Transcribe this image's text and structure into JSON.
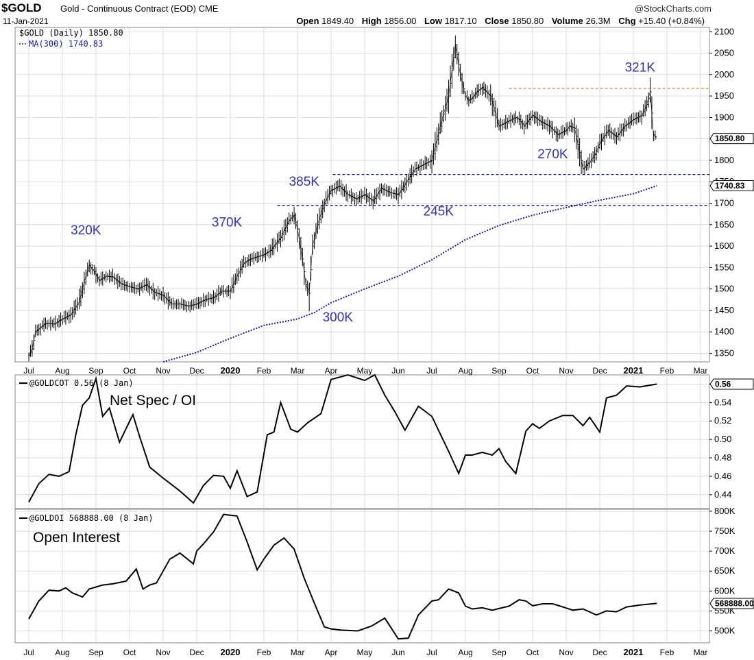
{
  "header": {
    "symbol": "$GOLD",
    "description": "Gold - Continuous Contract (EOD) CME",
    "date": "11-Jan-2021",
    "brand": "@StockCharts.com",
    "open_label": "Open",
    "open": "1849.40",
    "high_label": "High",
    "high": "1856.00",
    "low_label": "Low",
    "low": "1817.10",
    "close_label": "Close",
    "close": "1850.80",
    "volume_label": "Volume",
    "volume": "26.3M",
    "chg_label": "Chg",
    "chg": "+15.40 (+0.84%)"
  },
  "months": [
    "Jul",
    "Aug",
    "Sep",
    "Oct",
    "Nov",
    "Dec",
    "2020",
    "Feb",
    "Mar",
    "Apr",
    "May",
    "Jun",
    "Jul",
    "Aug",
    "Sep",
    "Oct",
    "Nov",
    "Dec",
    "2021",
    "Feb",
    "Mar"
  ],
  "bold_months": [
    "2020",
    "2021"
  ],
  "colors": {
    "price": "#000000",
    "ma": "#1a1aa0",
    "annotation": "#3333aa",
    "resistance": "#e07030",
    "support": "#1a1aa0",
    "grid": "#c8c8c8"
  },
  "chart_data": [
    {
      "type": "line",
      "title": "$GOLD (Daily) 1850.80",
      "legend_label": "$GOLD (Daily) 1850.80",
      "ma_legend_label": "MA(300) 1740.83",
      "last_price_tag": "1850.80",
      "ma_tag": "1740.83",
      "ylim": [
        1330,
        2110
      ],
      "yticks": [
        1350,
        1400,
        1450,
        1500,
        1550,
        1600,
        1650,
        1700,
        1750,
        1800,
        1850,
        1900,
        1950,
        2000,
        2050,
        2100
      ],
      "x_index_range": [
        0,
        20
      ],
      "price_series": {
        "name": "$GOLD (Daily)",
        "x": [
          0,
          0.1,
          0.2,
          0.35,
          0.5,
          0.75,
          1.0,
          1.25,
          1.5,
          1.7,
          1.8,
          1.95,
          2.1,
          2.3,
          2.5,
          2.75,
          3.0,
          3.25,
          3.5,
          3.75,
          4.0,
          4.25,
          4.5,
          4.75,
          5.0,
          5.25,
          5.5,
          5.75,
          6.0,
          6.2,
          6.4,
          6.6,
          6.8,
          7.0,
          7.2,
          7.5,
          7.75,
          7.9,
          8.0,
          8.15,
          8.25,
          8.35,
          8.45,
          8.6,
          8.8,
          9.0,
          9.25,
          9.5,
          9.75,
          10.0,
          10.25,
          10.5,
          10.75,
          11.0,
          11.25,
          11.5,
          11.75,
          12.0,
          12.25,
          12.5,
          12.7,
          12.85,
          13.0,
          13.1,
          13.2,
          13.35,
          13.5,
          13.75,
          14.0,
          14.25,
          14.5,
          14.6,
          14.75,
          15.0,
          15.25,
          15.5,
          15.75,
          16.0,
          16.1,
          16.25,
          16.5,
          16.75,
          16.9,
          17.0,
          17.25,
          17.5,
          17.75,
          18.0,
          18.25,
          18.4,
          18.5,
          18.6,
          18.7
        ],
        "values": [
          1345,
          1360,
          1400,
          1410,
          1420,
          1418,
          1430,
          1440,
          1470,
          1530,
          1555,
          1540,
          1520,
          1530,
          1528,
          1512,
          1505,
          1500,
          1510,
          1492,
          1485,
          1465,
          1465,
          1460,
          1465,
          1475,
          1480,
          1495,
          1495,
          1530,
          1560,
          1570,
          1575,
          1580,
          1590,
          1620,
          1660,
          1672,
          1640,
          1570,
          1510,
          1490,
          1600,
          1650,
          1700,
          1730,
          1740,
          1720,
          1710,
          1720,
          1705,
          1735,
          1725,
          1720,
          1750,
          1780,
          1790,
          1800,
          1880,
          1950,
          2070,
          2000,
          1950,
          1940,
          1945,
          1960,
          1970,
          1950,
          1880,
          1890,
          1900,
          1895,
          1880,
          1905,
          1890,
          1880,
          1860,
          1870,
          1880,
          1875,
          1780,
          1800,
          1820,
          1840,
          1870,
          1855,
          1880,
          1895,
          1905,
          1930,
          1960,
          1860,
          1850.8
        ]
      },
      "ma_series": {
        "name": "MA(300)",
        "x": [
          4.0,
          5.0,
          6.0,
          7.0,
          8.0,
          8.5,
          9.0,
          10.0,
          11.0,
          12.0,
          13.0,
          14.0,
          15.0,
          16.0,
          17.0,
          18.0,
          18.7
        ],
        "values": [
          1330,
          1352,
          1385,
          1415,
          1430,
          1445,
          1468,
          1500,
          1530,
          1568,
          1615,
          1648,
          1672,
          1690,
          1707,
          1722,
          1740.83
        ]
      },
      "reference_lines": [
        {
          "name": "resistance",
          "value": 1968,
          "x_start": 14.3,
          "x_end": 20.7,
          "color": "#e07030"
        },
        {
          "name": "support-upper",
          "value": 1767,
          "x_start": 9.05,
          "x_end": 20.7,
          "color": "#1a1aa0"
        },
        {
          "name": "support-lower",
          "value": 1695,
          "x_start": 7.4,
          "x_end": 20.7,
          "color": "#1a1aa0"
        }
      ],
      "annotations": [
        {
          "text": "320K",
          "x": 1.7,
          "y": 1627
        },
        {
          "text": "370K",
          "x": 5.9,
          "y": 1646
        },
        {
          "text": "385K",
          "x": 8.2,
          "y": 1741
        },
        {
          "text": "300K",
          "x": 9.2,
          "y": 1424
        },
        {
          "text": "245K",
          "x": 12.2,
          "y": 1671
        },
        {
          "text": "270K",
          "x": 15.6,
          "y": 1805
        },
        {
          "text": "321K",
          "x": 18.2,
          "y": 2007
        }
      ]
    },
    {
      "type": "line",
      "title": "Net Spec / OI",
      "legend_label": "@GOLDCOT 0.56 (8 Jan)",
      "last_value_tag": "0.56",
      "ylim": [
        0.425,
        0.57
      ],
      "yticks": [
        0.44,
        0.46,
        0.48,
        0.5,
        0.52,
        0.54,
        0.56
      ],
      "ytick_labels": [
        "0.44",
        "0.46",
        "0.48",
        "0.50",
        "0.52",
        "0.54",
        "0.56"
      ],
      "x": [
        0,
        0.3,
        0.6,
        0.9,
        1.2,
        1.4,
        1.6,
        1.8,
        2.0,
        2.2,
        2.4,
        2.7,
        3.1,
        3.3,
        3.6,
        4.0,
        4.5,
        4.9,
        5.2,
        5.5,
        5.8,
        6.0,
        6.2,
        6.5,
        6.8,
        7.1,
        7.3,
        7.5,
        7.8,
        8.0,
        8.3,
        8.7,
        9.0,
        9.5,
        10.0,
        10.3,
        10.6,
        10.9,
        11.2,
        11.6,
        12.0,
        12.5,
        12.8,
        13.0,
        13.2,
        13.5,
        13.8,
        14.0,
        14.2,
        14.5,
        14.8,
        15.0,
        15.2,
        15.5,
        15.9,
        16.2,
        16.5,
        16.7,
        17.0,
        17.2,
        17.5,
        17.8,
        18.2,
        18.7
      ],
      "values": [
        0.432,
        0.452,
        0.462,
        0.46,
        0.465,
        0.505,
        0.537,
        0.545,
        0.566,
        0.525,
        0.534,
        0.497,
        0.527,
        0.503,
        0.47,
        0.458,
        0.444,
        0.431,
        0.45,
        0.461,
        0.46,
        0.447,
        0.466,
        0.438,
        0.443,
        0.505,
        0.508,
        0.54,
        0.511,
        0.508,
        0.518,
        0.528,
        0.565,
        0.57,
        0.564,
        0.57,
        0.548,
        0.53,
        0.51,
        0.536,
        0.525,
        0.487,
        0.463,
        0.483,
        0.483,
        0.486,
        0.483,
        0.49,
        0.476,
        0.463,
        0.509,
        0.517,
        0.512,
        0.52,
        0.526,
        0.526,
        0.515,
        0.524,
        0.508,
        0.545,
        0.548,
        0.558,
        0.557,
        0.56
      ]
    },
    {
      "type": "line",
      "title": "Open Interest",
      "legend_label": "@GOLDOI 568888.00 (8 Jan)",
      "last_value_tag": "568888.00",
      "ylim": [
        470000,
        805000
      ],
      "yticks": [
        500000,
        550000,
        600000,
        650000,
        700000,
        750000,
        800000
      ],
      "ytick_labels": [
        "500K",
        "550K",
        "600K",
        "650K",
        "700K",
        "750K",
        "800K"
      ],
      "x": [
        0,
        0.3,
        0.6,
        0.9,
        1.1,
        1.3,
        1.6,
        1.8,
        2.0,
        2.2,
        2.5,
        2.9,
        3.2,
        3.4,
        3.6,
        3.8,
        4.2,
        4.5,
        4.9,
        5.0,
        5.2,
        5.5,
        5.8,
        6.2,
        6.5,
        6.8,
        7.0,
        7.3,
        7.6,
        7.9,
        8.2,
        8.5,
        8.8,
        9.0,
        9.3,
        9.8,
        10.2,
        10.6,
        11.0,
        11.3,
        11.6,
        12.0,
        12.2,
        12.5,
        12.8,
        13.0,
        13.2,
        13.5,
        13.8,
        14.0,
        14.3,
        14.6,
        14.8,
        15.0,
        15.3,
        15.6,
        15.9,
        16.2,
        16.5,
        16.9,
        17.2,
        17.5,
        17.8,
        18.2,
        18.7
      ],
      "values": [
        530000,
        575000,
        602000,
        600000,
        608000,
        595000,
        585000,
        605000,
        610000,
        615000,
        618000,
        625000,
        655000,
        605000,
        615000,
        620000,
        680000,
        695000,
        668000,
        700000,
        718000,
        748000,
        792000,
        788000,
        723000,
        653000,
        680000,
        715000,
        733000,
        705000,
        632000,
        570000,
        510000,
        505000,
        502000,
        500000,
        512000,
        532000,
        480000,
        482000,
        540000,
        575000,
        578000,
        605000,
        595000,
        562000,
        555000,
        558000,
        552000,
        556000,
        562000,
        578000,
        575000,
        563000,
        568000,
        568000,
        560000,
        552000,
        555000,
        540000,
        550000,
        548000,
        560000,
        565000,
        568888
      ]
    }
  ]
}
